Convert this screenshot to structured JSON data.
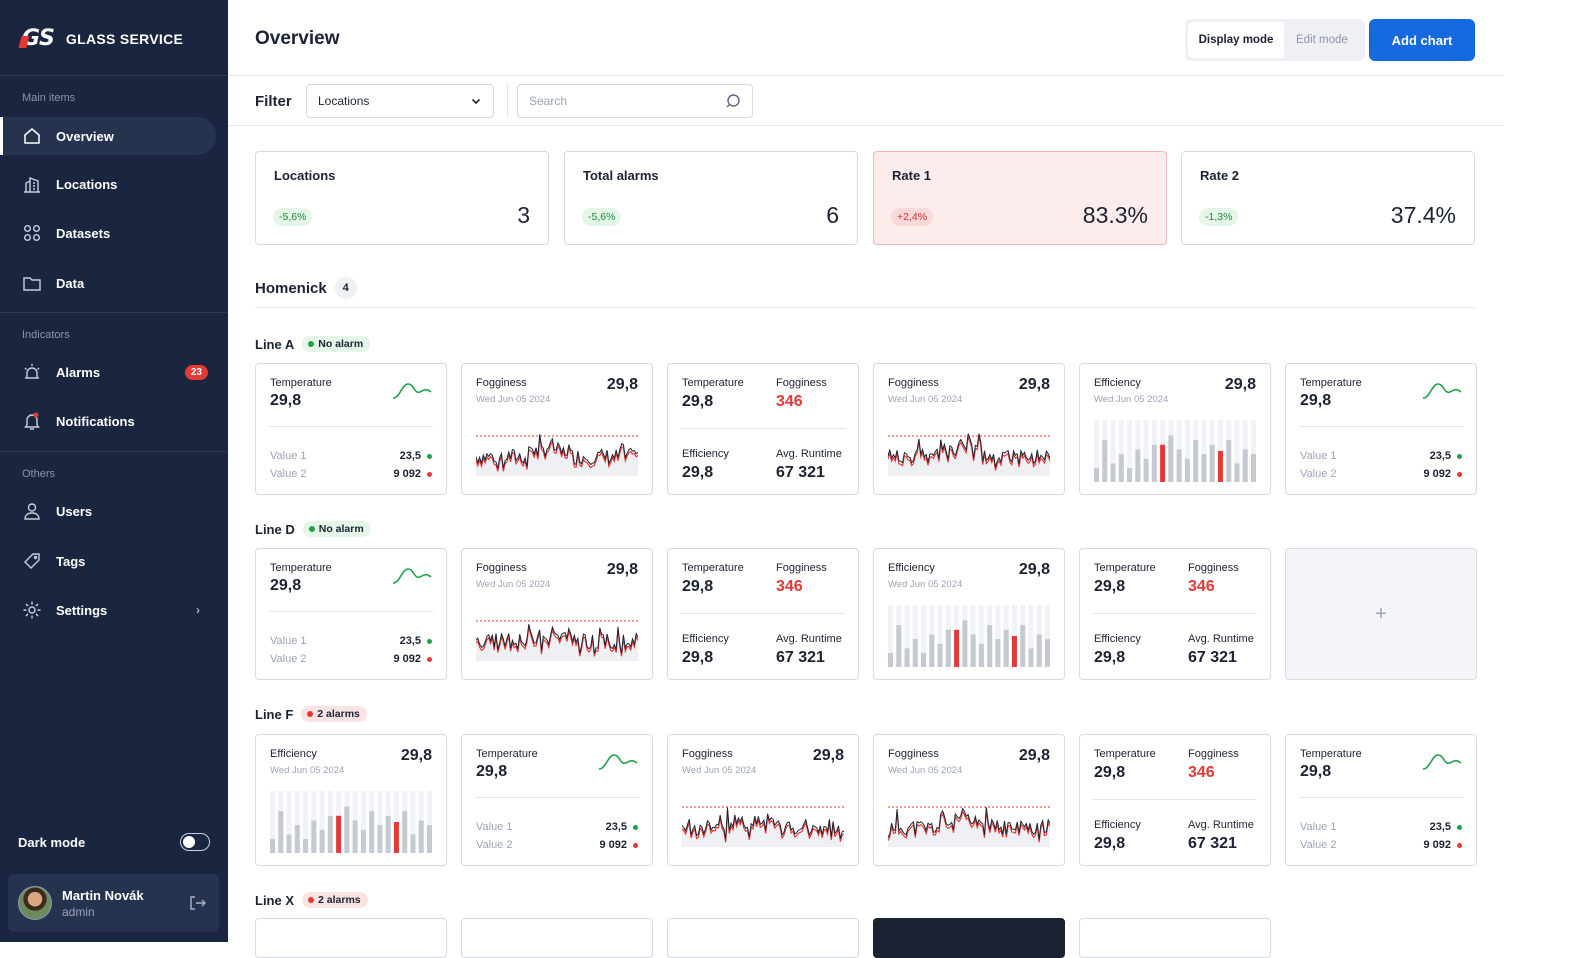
{
  "brand": {
    "logo": "GS",
    "name": "GLASS SERVICE"
  },
  "sidebar": {
    "sections": [
      "Main items",
      "Indicators",
      "Others"
    ],
    "items": [
      {
        "label": "Overview",
        "icon": "home-icon"
      },
      {
        "label": "Locations",
        "icon": "buildings-icon"
      },
      {
        "label": "Datasets",
        "icon": "grid-dots-icon"
      },
      {
        "label": "Data",
        "icon": "folder-icon"
      },
      {
        "label": "Alarms",
        "icon": "alarm-icon",
        "badge": "23"
      },
      {
        "label": "Notifications",
        "icon": "bell-icon"
      },
      {
        "label": "Users",
        "icon": "user-icon"
      },
      {
        "label": "Tags",
        "icon": "tag-icon"
      },
      {
        "label": "Settings",
        "icon": "gear-icon"
      }
    ],
    "dark_mode": "Dark mode",
    "user": {
      "name": "Martin Novák",
      "role": "admin"
    }
  },
  "header": {
    "title": "Overview",
    "display_mode": "Display mode",
    "edit_mode": "Edit mode",
    "add_chart": "Add chart"
  },
  "filter": {
    "label": "Filter",
    "select_value": "Locations",
    "search_placeholder": "Search"
  },
  "stats": [
    {
      "title": "Locations",
      "change": "-5,6%",
      "value": "3",
      "tone": "g"
    },
    {
      "title": "Total alarms",
      "change": "-5,6%",
      "value": "6",
      "tone": "g"
    },
    {
      "title": "Rate 1",
      "change": "+2,4%",
      "value": "83.3%",
      "tone": "r"
    },
    {
      "title": "Rate 2",
      "change": "-1,3%",
      "value": "37.4%",
      "tone": "g"
    }
  ],
  "group": {
    "name": "Homenick",
    "count": "4"
  },
  "lines": [
    {
      "name": "Line A",
      "status": "No alarm",
      "tone": "g"
    },
    {
      "name": "Line D",
      "status": "No alarm",
      "tone": "g"
    },
    {
      "name": "Line F",
      "status": "2 alarms",
      "tone": "r"
    },
    {
      "name": "Line X",
      "status": "2 alarms",
      "tone": "r"
    }
  ],
  "card_text": {
    "temperature": "Temperature",
    "fogginess": "Fogginess",
    "efficiency": "Efficiency",
    "avg_runtime": "Avg. Runtime",
    "value": "29,8",
    "fog_value": "346",
    "runtime": "67 321",
    "date": "Wed Jun 05 2024",
    "value1_label": "Value 1",
    "value2_label": "Value 2",
    "value1": "23,5",
    "value2": "9 092",
    "add": "+"
  },
  "rows": [
    [
      "temp",
      "fog",
      "quad",
      "fog",
      "eff",
      "temp"
    ],
    [
      "temp",
      "fog",
      "quad",
      "eff",
      "quad",
      "add"
    ],
    [
      "eff",
      "temp",
      "fog",
      "fog",
      "quad",
      "temp"
    ]
  ],
  "colors": {
    "accent": "#1769e0",
    "alarm": "#e53935",
    "ok": "#1fa34a",
    "sidebar": "#1a2540"
  }
}
